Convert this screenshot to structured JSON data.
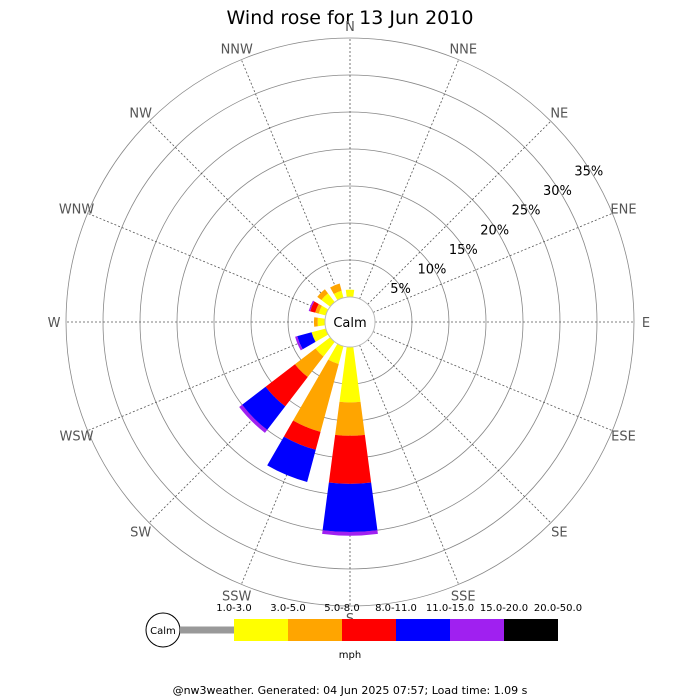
{
  "chart_data": {
    "type": "wind-rose",
    "title": "Wind rose for 13 Jun 2010",
    "center_label": "Calm",
    "directions": [
      "N",
      "NNE",
      "NE",
      "ENE",
      "E",
      "ESE",
      "SE",
      "SSE",
      "S",
      "SSW",
      "SW",
      "WSW",
      "W",
      "WNW",
      "NW",
      "NNW"
    ],
    "ring_labels": [
      "5%",
      "10%",
      "15%",
      "20%",
      "25%",
      "30%",
      "35%"
    ],
    "ring_values": [
      5,
      10,
      15,
      20,
      25,
      30,
      35
    ],
    "units": "mph",
    "bins": [
      {
        "label": "1.0-3.0",
        "color": "#999999"
      },
      {
        "label": "3.0-5.0",
        "color": "#ffff00"
      },
      {
        "label": "5.0-8.0",
        "color": "#ffa500"
      },
      {
        "label": "8.0-11.0",
        "color": "#ff0000"
      },
      {
        "label": "11.0-15.0",
        "color": "#0000ff"
      },
      {
        "label": "15.0-20.0",
        "color": "#a020f0"
      },
      {
        "label": "20.0-50.0",
        "color": "#000000"
      }
    ],
    "series": [
      {
        "direction": "N",
        "values": [
          0,
          1.0,
          0,
          0,
          0,
          0,
          0
        ]
      },
      {
        "direction": "S",
        "values": [
          0,
          7.5,
          4.5,
          6.5,
          6.5,
          0.5,
          0
        ]
      },
      {
        "direction": "SSW",
        "values": [
          0,
          2.5,
          9.5,
          2.5,
          4.5,
          0,
          0
        ]
      },
      {
        "direction": "SW",
        "values": [
          0,
          2.5,
          3.5,
          5.0,
          4.0,
          0.5,
          0
        ]
      },
      {
        "direction": "WSW",
        "values": [
          0,
          2.0,
          0,
          0,
          2.0,
          0.3,
          0
        ]
      },
      {
        "direction": "W",
        "values": [
          0,
          1.0,
          0.5,
          0,
          0,
          0,
          0
        ]
      },
      {
        "direction": "WNW",
        "values": [
          0,
          1.0,
          0.5,
          0.7,
          0,
          0.2,
          0
        ]
      },
      {
        "direction": "NW",
        "values": [
          0,
          1.5,
          0.7,
          0,
          0,
          0,
          0
        ]
      },
      {
        "direction": "NNW",
        "values": [
          0,
          1.0,
          1.0,
          0,
          0,
          0,
          0
        ]
      }
    ]
  },
  "footer": "@nw3weather. Generated: 04 Jun 2025 07:57; Load time: 1.09 s"
}
